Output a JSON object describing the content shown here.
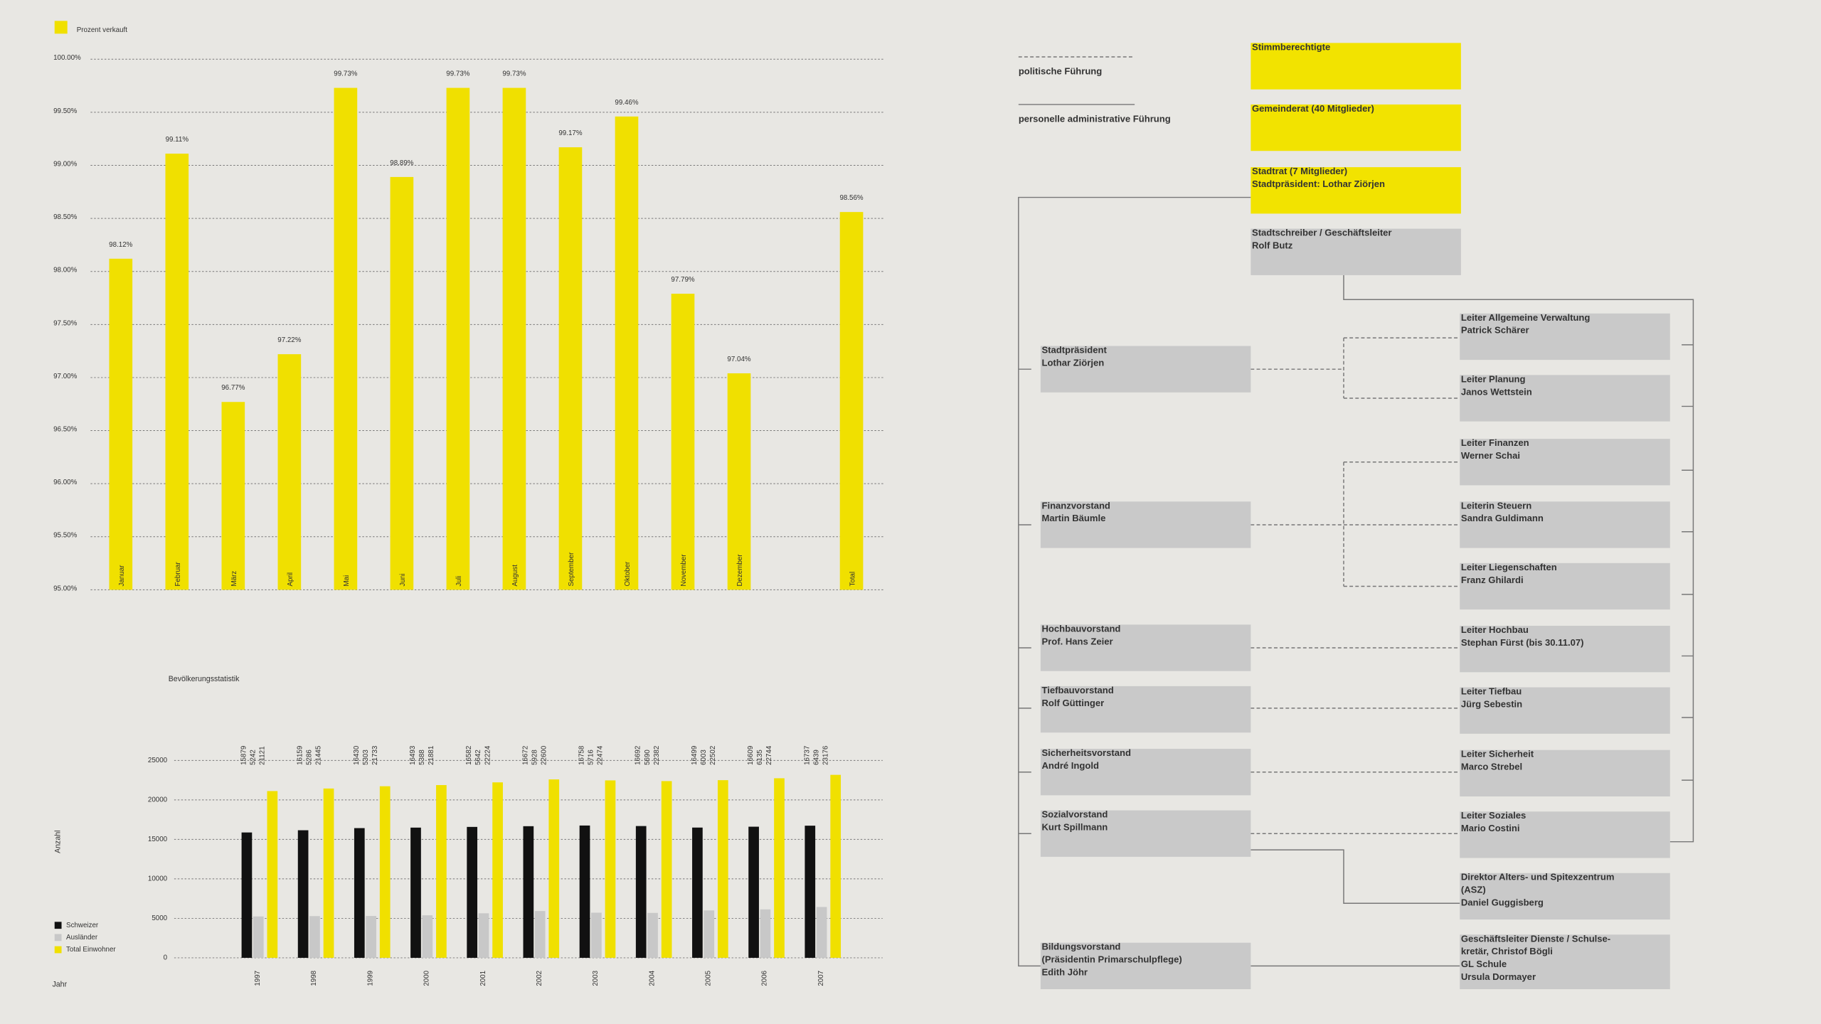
{
  "chart_data": [
    {
      "type": "bar",
      "categories": [
        "Januar",
        "Februar",
        "März",
        "April",
        "Mai",
        "Juni",
        "Juli",
        "August",
        "September",
        "Oktober",
        "November",
        "Dezember",
        null,
        "Total"
      ],
      "series": [
        {
          "name": "Prozent verkauft",
          "color": "#f0e000",
          "values": [
            98.12,
            99.11,
            96.77,
            97.22,
            99.73,
            98.89,
            99.73,
            99.73,
            99.17,
            99.46,
            97.79,
            97.04,
            null,
            98.56
          ],
          "value_labels": [
            "98.12%",
            "99.11%",
            "96.77%",
            "97.22%",
            "99.73%",
            "98.89%",
            "99.73%",
            "99.73%",
            "99.17%",
            "99.46%",
            "97.79%",
            "97.04%",
            null,
            "98.56%"
          ]
        }
      ],
      "ylim": [
        95,
        100
      ],
      "yticks": [
        {
          "value": 95,
          "label": "95.00%"
        },
        {
          "value": 95.5,
          "label": "95.50%"
        },
        {
          "value": 96,
          "label": "96.00%"
        },
        {
          "value": 96.5,
          "label": "96.50%"
        },
        {
          "value": 97,
          "label": "97.00%"
        },
        {
          "value": 97.5,
          "label": "97.50%"
        },
        {
          "value": 98,
          "label": "98.00%"
        },
        {
          "value": 98.5,
          "label": "98.50%"
        },
        {
          "value": 99,
          "label": "99.00%"
        },
        {
          "value": 99.5,
          "label": "99.50%"
        },
        {
          "value": 100,
          "label": "100.00%"
        }
      ],
      "grid": true
    },
    {
      "type": "bar",
      "title": "Bevölkerungsstatistik",
      "y_label": "Anzahl",
      "x_label": "Jahr",
      "categories": [
        "1997",
        "1998",
        "1999",
        "2000",
        "2001",
        "2002",
        "2003",
        "2004",
        "2005",
        "2006",
        "2007"
      ],
      "series": [
        {
          "name": "Schweizer",
          "color": "#111111",
          "values": [
            15879,
            16159,
            16430,
            16493,
            16582,
            16672,
            16758,
            16692,
            16499,
            16609,
            16737
          ]
        },
        {
          "name": "Ausländer",
          "color": "#c8c8c8",
          "values": [
            5242,
            5286,
            5303,
            5388,
            5642,
            5928,
            5716,
            5690,
            6003,
            6135,
            6439
          ]
        },
        {
          "name": "Total Einwohner",
          "color": "#f0e000",
          "values": [
            21121,
            21445,
            21733,
            21881,
            22224,
            22600,
            22474,
            22382,
            22502,
            22744,
            23176
          ]
        }
      ],
      "ylim": [
        0,
        25000
      ],
      "yticks": [
        0,
        5000,
        10000,
        15000,
        20000,
        25000
      ],
      "grid": true
    }
  ],
  "org": {
    "legend": [
      "politische Führung",
      "personelle administrative Führung"
    ],
    "nodes": [
      {
        "lines": [
          "Stimmberechtigte"
        ]
      },
      {
        "lines": [
          "Gemeinderat (40 Mitglieder)"
        ]
      },
      {
        "lines": [
          "Stadtrat (7 Mitglieder)",
          "Stadtpräsident: Lothar Ziörjen"
        ]
      },
      {
        "lines": [
          "Stadtschreiber / Geschäftsleiter",
          "Rolf Butz"
        ]
      },
      {
        "lines": [
          "Stadtpräsident",
          "Lothar Ziörjen"
        ]
      },
      {
        "lines": [
          "Finanzvorstand",
          "Martin Bäumle"
        ]
      },
      {
        "lines": [
          "Hochbauvorstand",
          "Prof. Hans Zeier"
        ]
      },
      {
        "lines": [
          "Tiefbauvorstand",
          "Rolf Güttinger"
        ]
      },
      {
        "lines": [
          "Sicherheitsvorstand",
          "André Ingold"
        ]
      },
      {
        "lines": [
          "Sozialvorstand",
          "Kurt Spillmann"
        ]
      },
      {
        "lines": [
          "Bildungsvorstand",
          "(Präsidentin Primarschulpflege)",
          "Edith Jöhr"
        ]
      },
      {
        "lines": [
          "Leiter Allgemeine Verwaltung",
          "Patrick Schärer"
        ]
      },
      {
        "lines": [
          "Leiter Planung",
          "Janos Wettstein"
        ]
      },
      {
        "lines": [
          "Leiter Finanzen",
          "Werner Schai"
        ]
      },
      {
        "lines": [
          "Leiterin Steuern",
          "Sandra Guldimann"
        ]
      },
      {
        "lines": [
          "Leiter Liegenschaften",
          "Franz Ghilardi"
        ]
      },
      {
        "lines": [
          "Leiter Hochbau",
          "Stephan Fürst (bis 30.11.07)"
        ]
      },
      {
        "lines": [
          "Leiter Tiefbau",
          "Jürg Sebestin"
        ]
      },
      {
        "lines": [
          "Leiter Sicherheit",
          "Marco Strebel"
        ]
      },
      {
        "lines": [
          "Leiter Soziales",
          "Mario Costini"
        ]
      },
      {
        "lines": [
          "Direktor Alters- und Spitexzentrum",
          "(ASZ)",
          "Daniel Guggisberg"
        ]
      },
      {
        "lines": [
          "Geschäftsleiter Dienste / Schulse-",
          "kretär, Christof Bögli",
          "GL Schule",
          "Ursula Dormayer"
        ]
      }
    ]
  }
}
